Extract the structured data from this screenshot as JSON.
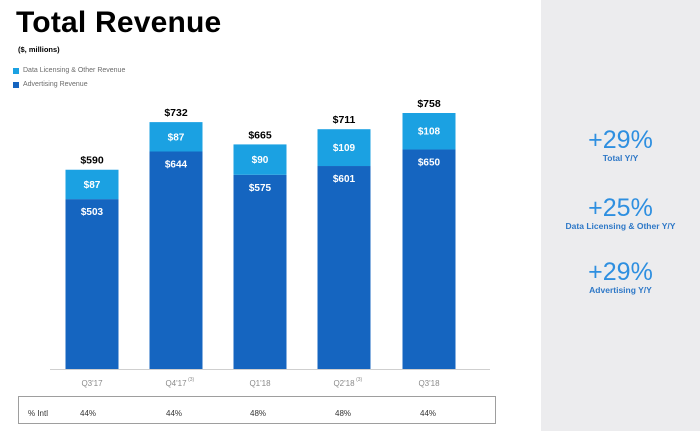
{
  "title": "Total Revenue",
  "subtitle": "($, millions)",
  "legend": [
    {
      "label": "Data Licensing & Other Revenue",
      "color": "#1ba1e2"
    },
    {
      "label": "Advertising Revenue",
      "color": "#1565c0"
    }
  ],
  "chart_data": {
    "type": "bar",
    "stacked": true,
    "title": "Total Revenue",
    "subtitle": "($, millions)",
    "categories": [
      "Q3'17",
      "Q4'17",
      "Q1'18",
      "Q2'18",
      "Q3'18"
    ],
    "category_footnotes": [
      "",
      "(3)",
      "",
      "(3)",
      ""
    ],
    "series": [
      {
        "name": "Advertising Revenue",
        "values": [
          503,
          644,
          575,
          601,
          650
        ],
        "color": "#1565c0"
      },
      {
        "name": "Data Licensing & Other Revenue",
        "values": [
          87,
          87,
          90,
          109,
          108
        ],
        "color": "#1ba1e2"
      }
    ],
    "totals": [
      590,
      732,
      665,
      711,
      758
    ],
    "total_labels": [
      "$590",
      "$732",
      "$665",
      "$711",
      "$758"
    ],
    "advertising_labels": [
      "$503",
      "$644",
      "$575",
      "$601",
      "$650"
    ],
    "licensing_labels": [
      "$87",
      "$87",
      "$90",
      "$109",
      "$108"
    ],
    "ylim": [
      0,
      758
    ],
    "grid": false
  },
  "intl_row": {
    "label": "% Intl",
    "values": [
      "44%",
      "44%",
      "48%",
      "48%",
      "44%"
    ]
  },
  "stats": [
    {
      "value": "+29%",
      "label": "Total Y/Y"
    },
    {
      "value": "+25%",
      "label": "Data Licensing & Other Y/Y"
    },
    {
      "value": "+29%",
      "label": "Advertising Y/Y"
    }
  ]
}
